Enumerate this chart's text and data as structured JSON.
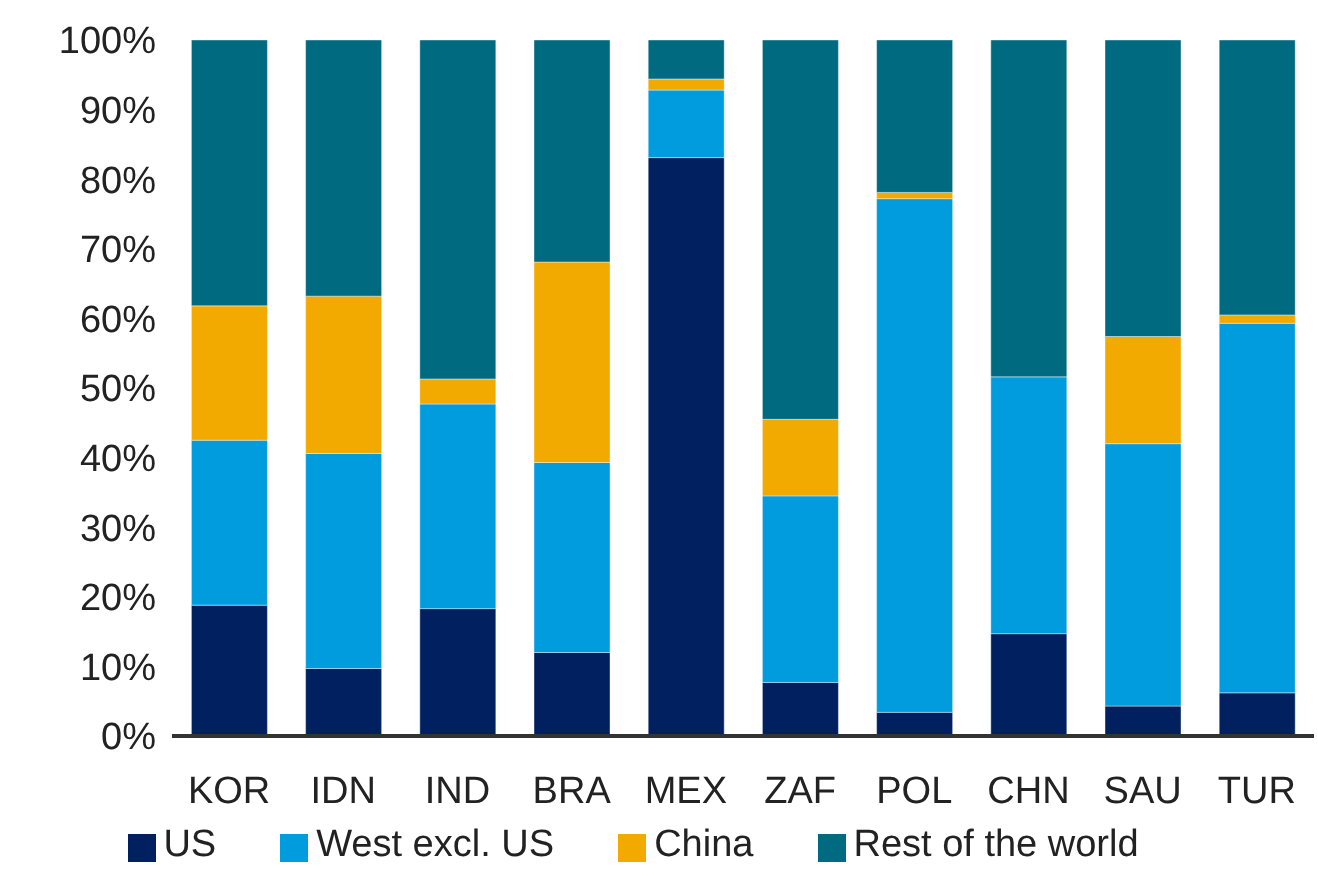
{
  "chart_data": {
    "type": "bar",
    "stacked": true,
    "categories": [
      "KOR",
      "IDN",
      "IND",
      "BRA",
      "MEX",
      "ZAF",
      "POL",
      "CHN",
      "SAU",
      "TUR"
    ],
    "series": [
      {
        "name": "US",
        "color": "#002060",
        "values": [
          18.8,
          9.7,
          18.3,
          12.0,
          83.1,
          7.7,
          3.4,
          14.7,
          4.3,
          6.2
        ]
      },
      {
        "name": "West excl. US",
        "color": "#009cde",
        "values": [
          23.7,
          30.9,
          29.4,
          27.3,
          9.7,
          26.8,
          73.8,
          36.9,
          37.7,
          53.1
        ]
      },
      {
        "name": "China",
        "color": "#f2a900",
        "values": [
          19.3,
          22.6,
          3.6,
          28.8,
          1.6,
          11.0,
          0.9,
          0,
          15.4,
          1.2
        ]
      },
      {
        "name": "Rest of the world",
        "color": "#006a80",
        "values": [
          38.2,
          36.8,
          48.7,
          31.9,
          5.6,
          54.5,
          21.9,
          48.4,
          42.6,
          39.5
        ]
      }
    ],
    "ylim": [
      0,
      100
    ],
    "yticks": [
      {
        "value": 0,
        "label": "0%"
      },
      {
        "value": 10,
        "label": "10%"
      },
      {
        "value": 20,
        "label": "20%"
      },
      {
        "value": 30,
        "label": "30%"
      },
      {
        "value": 40,
        "label": "40%"
      },
      {
        "value": 50,
        "label": "50%"
      },
      {
        "value": 60,
        "label": "60%"
      },
      {
        "value": 70,
        "label": "70%"
      },
      {
        "value": 80,
        "label": "80%"
      },
      {
        "value": 90,
        "label": "90%"
      },
      {
        "value": 100,
        "label": "100%"
      }
    ],
    "grid": false,
    "legend": "bottom"
  }
}
